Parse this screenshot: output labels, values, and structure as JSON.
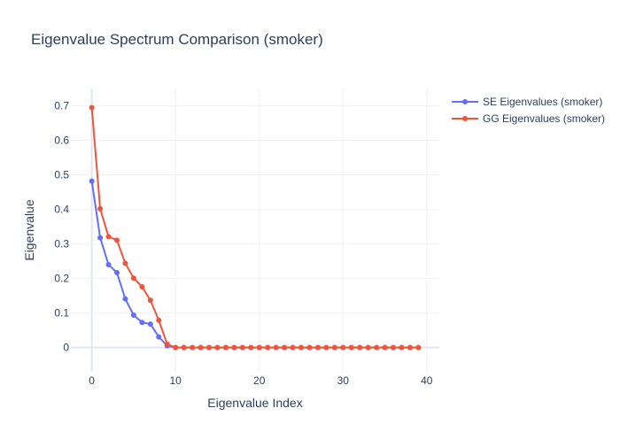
{
  "chart_data": {
    "type": "line",
    "title": "Eigenvalue Spectrum Comparison (smoker)",
    "xlabel": "Eigenvalue Index",
    "ylabel": "Eigenvalue",
    "xlim": [
      -2.5,
      41.5
    ],
    "ylim": [
      -0.07,
      0.75
    ],
    "xticks": [
      0,
      10,
      20,
      30,
      40
    ],
    "yticks": [
      0,
      0.1,
      0.2,
      0.3,
      0.4,
      0.5,
      0.6,
      0.7
    ],
    "ytick_labels": [
      "0",
      "0.1",
      "0.2",
      "0.3",
      "0.4",
      "0.5",
      "0.6",
      "0.7"
    ],
    "grid": true,
    "legend_position": "top-right",
    "x": [
      0,
      1,
      2,
      3,
      4,
      5,
      6,
      7,
      8,
      9,
      10,
      11,
      12,
      13,
      14,
      15,
      16,
      17,
      18,
      19,
      20,
      21,
      22,
      23,
      24,
      25,
      26,
      27,
      28,
      29,
      30,
      31,
      32,
      33,
      34,
      35,
      36,
      37,
      38,
      39
    ],
    "series": [
      {
        "name": "SE Eigenvalues (smoker)",
        "color": "#636efa",
        "values": [
          0.482,
          0.318,
          0.24,
          0.217,
          0.141,
          0.094,
          0.073,
          0.068,
          0.031,
          0.005,
          0,
          0,
          0,
          0,
          0,
          0,
          0,
          0,
          0,
          0,
          0,
          0,
          0,
          0,
          0,
          0,
          0,
          0,
          0,
          0,
          0,
          0,
          0,
          0,
          0,
          0,
          0,
          0,
          0,
          0
        ]
      },
      {
        "name": "GG Eigenvalues (smoker)",
        "color": "#ef553b",
        "values": [
          0.695,
          0.402,
          0.321,
          0.311,
          0.244,
          0.201,
          0.176,
          0.137,
          0.079,
          0.01,
          0,
          0,
          0,
          0,
          0,
          0,
          0,
          0,
          0,
          0,
          0,
          0,
          0,
          0,
          0,
          0,
          0,
          0,
          0,
          0,
          0,
          0,
          0,
          0,
          0,
          0,
          0,
          0,
          0,
          0
        ]
      }
    ]
  }
}
